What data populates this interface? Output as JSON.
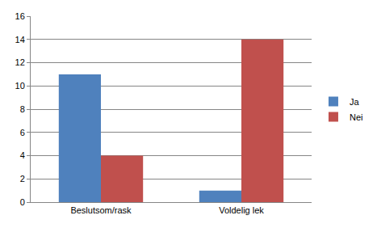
{
  "chart_data": {
    "type": "bar",
    "categories": [
      "Beslutsom/rask",
      "Voldelig lek"
    ],
    "series": [
      {
        "name": "Ja",
        "color": "#4f81bd",
        "values": [
          11,
          1
        ]
      },
      {
        "name": "Nei",
        "color": "#c0504d",
        "values": [
          4,
          14
        ]
      }
    ],
    "ylim": [
      0,
      16
    ],
    "yticks": [
      0,
      2,
      4,
      6,
      8,
      10,
      12,
      14,
      16
    ],
    "grid": true,
    "legend": "right"
  }
}
